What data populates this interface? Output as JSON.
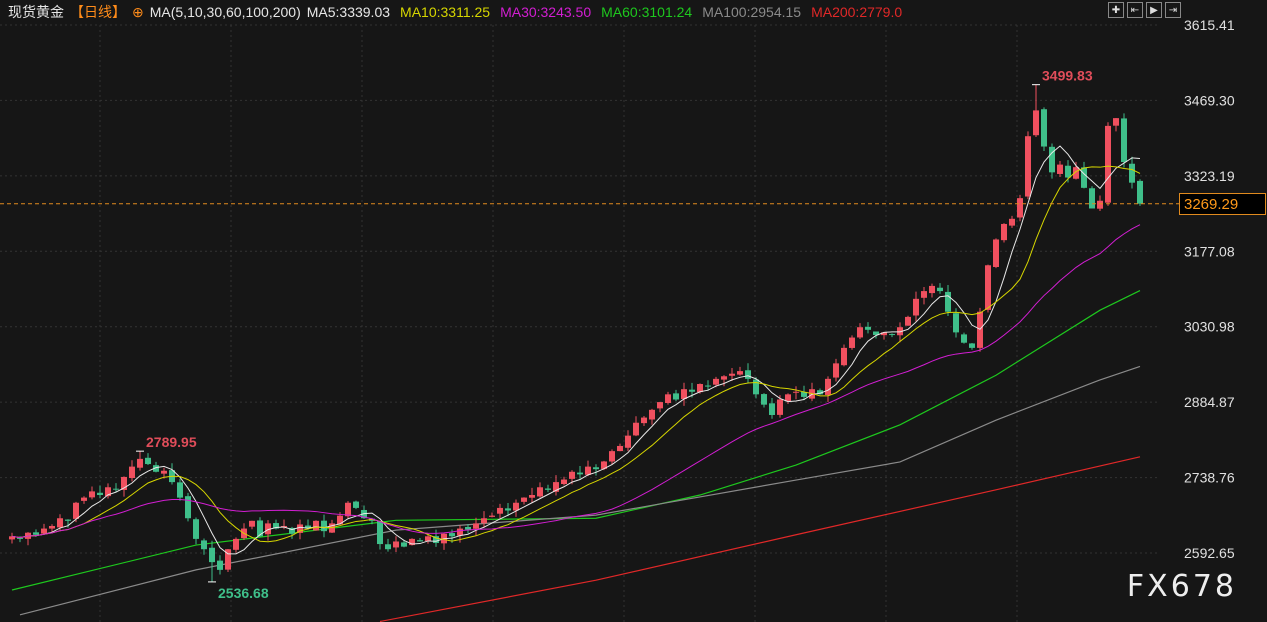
{
  "header": {
    "symbol": "现货黄金",
    "period": "【日线】",
    "indicator": "MA(5,10,30,60,100,200)",
    "ma": [
      {
        "label": "MA5:3339.03",
        "color": "#e8e8e8"
      },
      {
        "label": "MA10:3311.25",
        "color": "#d6d600"
      },
      {
        "label": "MA30:3243.50",
        "color": "#d21ed2"
      },
      {
        "label": "MA60:3101.24",
        "color": "#1ec81e"
      },
      {
        "label": "MA100:2954.15",
        "color": "#8a8a8a"
      },
      {
        "label": "MA200:2779.0",
        "color": "#e02828"
      }
    ]
  },
  "tools": [
    "crosshair-icon",
    "zoom-left-icon",
    "play-icon",
    "jump-end-icon"
  ],
  "watermark": "FX678",
  "chart_data": {
    "type": "candlestick",
    "up_color": "#f0505f",
    "down_color": "#3fbf8a",
    "ylim": [
      2480,
      3640
    ],
    "yticks": [
      "3615.41",
      "3469.30",
      "3323.19",
      "3177.08",
      "3030.98",
      "2884.87",
      "2738.76",
      "2592.65"
    ],
    "current_price": "3269.29",
    "annotations": [
      {
        "label": "3499.83",
        "index": 128,
        "value": 3499.83,
        "kind": "high"
      },
      {
        "label": "2789.95",
        "index": 16,
        "value": 2789.95,
        "kind": "high"
      },
      {
        "label": "2536.68",
        "index": 25,
        "value": 2536.68,
        "kind": "low"
      }
    ],
    "closes": [
      2625,
      2620,
      2632,
      2628,
      2640,
      2645,
      2660,
      2655,
      2690,
      2700,
      2712,
      2705,
      2720,
      2716,
      2740,
      2760,
      2775,
      2765,
      2750,
      2752,
      2730,
      2700,
      2660,
      2620,
      2600,
      2575,
      2560,
      2600,
      2620,
      2640,
      2655,
      2625,
      2650,
      2640,
      2645,
      2630,
      2648,
      2640,
      2655,
      2635,
      2650,
      2665,
      2690,
      2680,
      2660,
      2655,
      2610,
      2600,
      2615,
      2605,
      2620,
      2615,
      2625,
      2612,
      2630,
      2625,
      2640,
      2638,
      2650,
      2660,
      2665,
      2680,
      2675,
      2690,
      2700,
      2705,
      2720,
      2715,
      2730,
      2735,
      2750,
      2745,
      2760,
      2755,
      2770,
      2790,
      2800,
      2820,
      2845,
      2855,
      2870,
      2885,
      2900,
      2890,
      2910,
      2905,
      2920,
      2915,
      2930,
      2935,
      2940,
      2945,
      2930,
      2900,
      2880,
      2860,
      2890,
      2900,
      2905,
      2895,
      2910,
      2900,
      2930,
      2960,
      2990,
      3010,
      3030,
      3025,
      3015,
      3020,
      3015,
      3030,
      3050,
      3085,
      3100,
      3110,
      3100,
      3060,
      3020,
      3000,
      2990,
      3060,
      3150,
      3200,
      3230,
      3240,
      3280,
      3400,
      3450,
      3380,
      3330,
      3345,
      3320,
      3340,
      3300,
      3260,
      3275,
      3420,
      3435,
      3350,
      3310,
      3269.29
    ],
    "ma_long": {
      "MA60": [
        [
          0,
          2521
        ],
        [
          23,
          2608
        ],
        [
          48,
          2656
        ],
        [
          73,
          2660
        ],
        [
          86,
          2705
        ],
        [
          98,
          2763
        ],
        [
          111,
          2841
        ],
        [
          123,
          2937
        ],
        [
          136,
          3063
        ],
        [
          141,
          3101
        ]
      ],
      "MA100": [
        [
          1,
          2473
        ],
        [
          23,
          2560
        ],
        [
          48,
          2637
        ],
        [
          73,
          2666
        ],
        [
          98,
          2734
        ],
        [
          111,
          2769
        ],
        [
          123,
          2850
        ],
        [
          136,
          2928
        ],
        [
          141,
          2954
        ]
      ],
      "MA200": [
        [
          46,
          2460
        ],
        [
          73,
          2540
        ],
        [
          98,
          2628
        ],
        [
          123,
          2715
        ],
        [
          141,
          2779
        ]
      ]
    }
  }
}
